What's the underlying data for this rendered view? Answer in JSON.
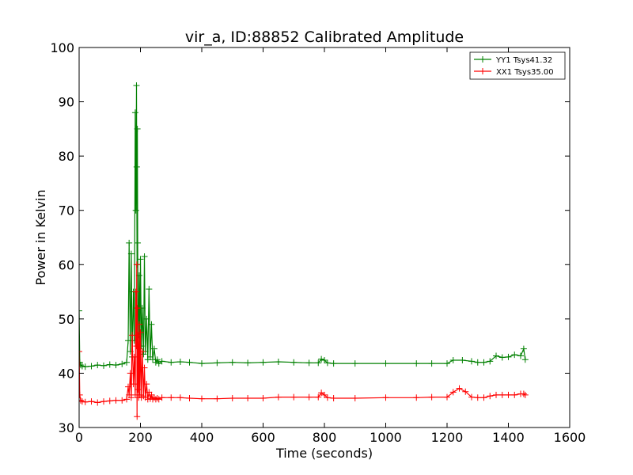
{
  "chart_data": {
    "type": "line",
    "title": "vir_a, ID:88852 Calibrated Amplitude",
    "xlabel": "Time (seconds)",
    "ylabel": "Power in Kelvin",
    "xlim": [
      0,
      1600
    ],
    "ylim": [
      30,
      100
    ],
    "xticks": [
      0,
      200,
      400,
      600,
      800,
      1000,
      1200,
      1400,
      1600
    ],
    "yticks": [
      30,
      40,
      50,
      60,
      70,
      80,
      90,
      100
    ],
    "grid": false,
    "legend_position": "top-right",
    "marker": "+",
    "series": [
      {
        "name": "YY1 Tsys41.32",
        "color": "#008000",
        "x": [
          0,
          2,
          5,
          10,
          20,
          40,
          60,
          80,
          100,
          120,
          140,
          155,
          160,
          163,
          167,
          170,
          173,
          177,
          180,
          183,
          185,
          187,
          188,
          189,
          190,
          191,
          192,
          194,
          196,
          198,
          200,
          203,
          206,
          210,
          213,
          216,
          220,
          224,
          228,
          232,
          236,
          240,
          245,
          250,
          255,
          260,
          270,
          300,
          330,
          360,
          400,
          450,
          500,
          550,
          600,
          650,
          700,
          750,
          780,
          790,
          800,
          810,
          830,
          900,
          1000,
          1100,
          1150,
          1200,
          1220,
          1250,
          1280,
          1300,
          1320,
          1340,
          1360,
          1380,
          1400,
          1420,
          1440,
          1450,
          1455
        ],
        "y": [
          51.5,
          42.0,
          41.5,
          41.3,
          41.2,
          41.3,
          41.5,
          41.4,
          41.6,
          41.5,
          41.7,
          42.0,
          46.0,
          64.0,
          44.0,
          62.0,
          43.0,
          55.0,
          46.0,
          88.0,
          70.0,
          93.0,
          78.0,
          60.0,
          85.0,
          64.0,
          52.0,
          47.0,
          58.0,
          44.0,
          61.0,
          45.0,
          52.0,
          43.5,
          61.5,
          44.0,
          50.0,
          42.5,
          55.5,
          43.0,
          49.0,
          42.5,
          44.5,
          42.0,
          42.5,
          41.8,
          42.2,
          42.0,
          42.1,
          42.0,
          41.8,
          41.9,
          42.0,
          41.9,
          42.0,
          42.1,
          42.0,
          41.9,
          41.9,
          42.6,
          42.4,
          41.9,
          41.8,
          41.8,
          41.8,
          41.8,
          41.8,
          41.8,
          42.4,
          42.4,
          42.2,
          42.0,
          42.0,
          42.2,
          43.2,
          42.9,
          43.0,
          43.4,
          43.2,
          44.5,
          42.5
        ]
      },
      {
        "name": "XX1 Tsys35.00",
        "color": "#ff0000",
        "x": [
          0,
          2,
          5,
          10,
          20,
          40,
          60,
          80,
          100,
          120,
          140,
          155,
          160,
          163,
          167,
          170,
          173,
          177,
          180,
          183,
          185,
          187,
          188,
          189,
          190,
          191,
          192,
          194,
          196,
          198,
          200,
          203,
          206,
          210,
          213,
          216,
          220,
          224,
          228,
          232,
          236,
          240,
          245,
          250,
          255,
          260,
          270,
          300,
          330,
          360,
          400,
          450,
          500,
          550,
          600,
          650,
          700,
          750,
          780,
          790,
          800,
          810,
          830,
          900,
          1000,
          1100,
          1150,
          1200,
          1220,
          1240,
          1260,
          1280,
          1300,
          1320,
          1340,
          1360,
          1380,
          1400,
          1420,
          1440,
          1450,
          1455
        ],
        "y": [
          44.0,
          36.0,
          35.0,
          34.8,
          34.7,
          34.8,
          34.6,
          34.8,
          34.9,
          35.0,
          35.0,
          35.2,
          37.5,
          36.0,
          40.0,
          35.5,
          47.0,
          38.0,
          43.0,
          36.0,
          55.0,
          45.0,
          60.0,
          32.0,
          52.0,
          37.0,
          47.0,
          35.5,
          49.0,
          36.0,
          47.5,
          35.5,
          44.0,
          35.8,
          41.0,
          35.5,
          38.0,
          35.2,
          36.5,
          35.3,
          36.0,
          35.2,
          35.5,
          35.2,
          35.4,
          35.2,
          35.5,
          35.5,
          35.5,
          35.4,
          35.3,
          35.3,
          35.4,
          35.4,
          35.4,
          35.6,
          35.6,
          35.6,
          35.6,
          36.4,
          36.0,
          35.5,
          35.4,
          35.4,
          35.5,
          35.5,
          35.6,
          35.6,
          36.5,
          37.2,
          36.6,
          35.6,
          35.5,
          35.5,
          35.8,
          36.0,
          36.0,
          36.0,
          36.0,
          36.2,
          36.2,
          36.0
        ]
      }
    ]
  }
}
